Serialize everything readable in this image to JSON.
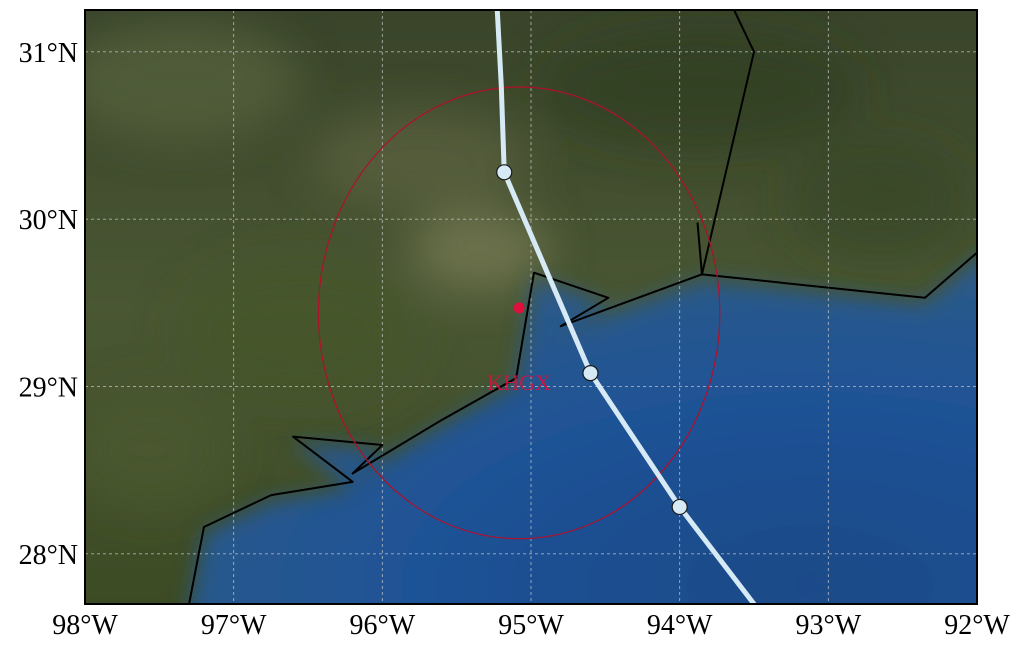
{
  "map": {
    "extent": {
      "lon_min": -98.0,
      "lon_max": -92.0,
      "lat_min": 27.7,
      "lat_max": 31.25
    },
    "x_ticks": [
      {
        "lon": -98,
        "label": "98°W"
      },
      {
        "lon": -97,
        "label": "97°W"
      },
      {
        "lon": -96,
        "label": "96°W"
      },
      {
        "lon": -95,
        "label": "95°W"
      },
      {
        "lon": -94,
        "label": "94°W"
      },
      {
        "lon": -93,
        "label": "93°W"
      },
      {
        "lon": -92,
        "label": "92°W"
      }
    ],
    "y_ticks": [
      {
        "lat": 28,
        "label": "28°N"
      },
      {
        "lat": 29,
        "label": "29°N"
      },
      {
        "lat": 30,
        "label": "30°N"
      },
      {
        "lat": 31,
        "label": "31°N"
      }
    ],
    "gridlines": true,
    "colors": {
      "land": "#4a5530",
      "water": "#1d4f8c",
      "storm_track": "#d6eaf6",
      "radar_ring": "#b0102a",
      "radar_marker": "#e0103c",
      "border": "#000000"
    },
    "radar_site": {
      "label": "KHGX",
      "lon": -95.08,
      "lat": 29.47,
      "range_ring_center": {
        "lon": -95.08,
        "lat": 29.44
      },
      "range_ring_radius_deg_lon": 1.35,
      "range_ring_radius_deg_lat": 1.35
    },
    "storm_track": [
      {
        "lon": -95.23,
        "lat": 31.3
      },
      {
        "lon": -95.2,
        "lat": 30.8
      },
      {
        "lon": -95.18,
        "lat": 30.28
      },
      {
        "lon": -94.9,
        "lat": 29.7
      },
      {
        "lon": -94.6,
        "lat": 29.08
      },
      {
        "lon": -94.0,
        "lat": 28.28
      },
      {
        "lon": -93.5,
        "lat": 27.7
      }
    ],
    "track_points": [
      {
        "lon": -95.18,
        "lat": 30.28
      },
      {
        "lon": -94.6,
        "lat": 29.08
      },
      {
        "lon": -94.0,
        "lat": 28.28
      }
    ],
    "boundary_lines": [
      [
        {
          "lon": -97.3,
          "lat": 27.7
        },
        {
          "lon": -97.2,
          "lat": 28.16
        },
        {
          "lon": -96.75,
          "lat": 28.35
        },
        {
          "lon": -96.2,
          "lat": 28.43
        },
        {
          "lon": -96.6,
          "lat": 28.7
        },
        {
          "lon": -96.0,
          "lat": 28.65
        },
        {
          "lon": -96.2,
          "lat": 28.48
        },
        {
          "lon": -95.6,
          "lat": 28.8
        },
        {
          "lon": -95.1,
          "lat": 29.05
        },
        {
          "lon": -94.98,
          "lat": 29.68
        },
        {
          "lon": -94.48,
          "lat": 29.53
        },
        {
          "lon": -94.8,
          "lat": 29.36
        },
        {
          "lon": -93.85,
          "lat": 29.67
        },
        {
          "lon": -92.35,
          "lat": 29.53
        },
        {
          "lon": -92.0,
          "lat": 29.8
        }
      ],
      [
        {
          "lon": -93.88,
          "lat": 29.98
        },
        {
          "lon": -93.85,
          "lat": 29.67
        },
        {
          "lon": -93.5,
          "lat": 31.0
        },
        {
          "lon": -93.65,
          "lat": 31.28
        }
      ]
    ]
  }
}
